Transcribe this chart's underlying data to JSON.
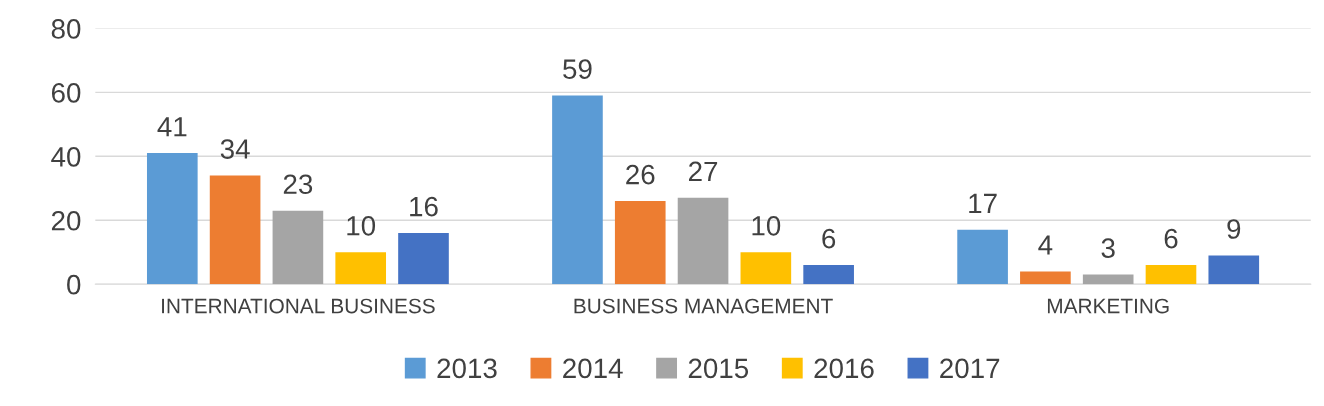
{
  "chart_data": {
    "type": "bar",
    "categories": [
      "INTERNATIONAL BUSINESS",
      "BUSINESS MANAGEMENT",
      "MARKETING"
    ],
    "series": [
      {
        "name": "2013",
        "color": "#5b9bd5",
        "values": [
          41,
          59,
          17
        ]
      },
      {
        "name": "2014",
        "color": "#ed7d31",
        "values": [
          34,
          26,
          4
        ]
      },
      {
        "name": "2015",
        "color": "#a5a5a5",
        "values": [
          23,
          27,
          3
        ]
      },
      {
        "name": "2016",
        "color": "#ffc000",
        "values": [
          10,
          10,
          6
        ]
      },
      {
        "name": "2017",
        "color": "#4472c4",
        "values": [
          16,
          6,
          9
        ]
      }
    ],
    "ylim": [
      0,
      80
    ],
    "yticks": [
      0,
      20,
      40,
      60,
      80
    ],
    "grid": "y",
    "legend": "bottom",
    "data_labels": true
  }
}
